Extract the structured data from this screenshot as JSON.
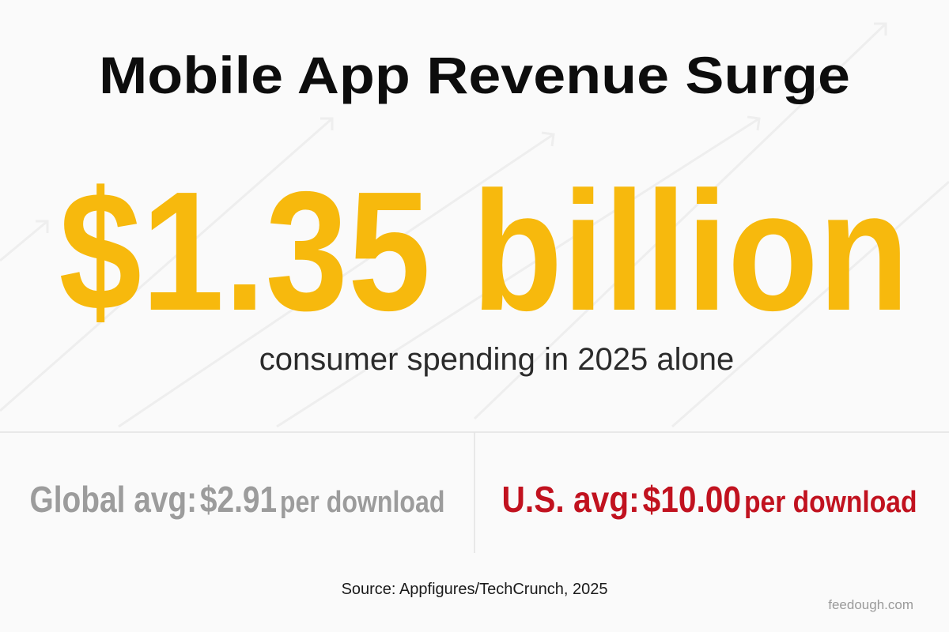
{
  "header": {
    "title": "Mobile App Revenue Surge"
  },
  "headline": {
    "value": "$1.35 billion",
    "caption": "consumer spending in 2025 alone"
  },
  "stats": [
    {
      "label": "Global avg:",
      "value": "$2.91",
      "unit": "per download"
    },
    {
      "label": "U.S. avg:",
      "value": "$10.00",
      "unit": "per download"
    }
  ],
  "footer": {
    "source": "Source: Appfigures/TechCrunch, 2025",
    "watermark": "feedough.com"
  }
}
